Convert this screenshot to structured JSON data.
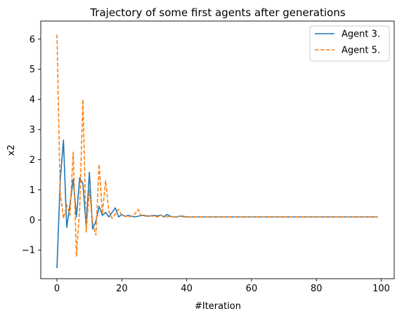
{
  "chart_data": {
    "type": "line",
    "title": "Trajectory of some first agents after generations",
    "xlabel": "#Iteration",
    "ylabel": "x2",
    "xlim": [
      -5,
      104
    ],
    "ylim": [
      -1.95,
      6.6
    ],
    "xticks": [
      0,
      20,
      40,
      60,
      80,
      100
    ],
    "yticks": [
      -1,
      0,
      1,
      2,
      3,
      4,
      5,
      6
    ],
    "xtick_labels": [
      "0",
      "20",
      "40",
      "60",
      "80",
      "100"
    ],
    "ytick_labels": [
      "−1",
      "0",
      "1",
      "2",
      "3",
      "4",
      "5",
      "6"
    ],
    "grid": false,
    "legend_position": "top-right",
    "series": [
      {
        "name": "Agent 3.",
        "color": "#1f77b4",
        "style": "solid",
        "x": [
          0,
          1,
          2,
          3,
          4,
          5,
          6,
          7,
          8,
          9,
          10,
          11,
          12,
          13,
          14,
          15,
          16,
          17,
          18,
          19,
          20,
          21,
          22,
          23,
          24,
          25,
          26,
          27,
          28,
          29,
          30,
          31,
          32,
          33,
          34,
          35,
          36,
          37,
          38,
          39,
          40,
          41,
          42,
          43,
          44,
          45,
          46,
          47,
          48,
          49,
          50,
          51,
          52,
          53,
          54,
          55,
          56,
          57,
          58,
          59,
          60,
          61,
          62,
          63,
          64,
          65,
          66,
          67,
          68,
          69,
          70,
          71,
          72,
          73,
          74,
          75,
          76,
          77,
          78,
          79,
          80,
          81,
          82,
          83,
          84,
          85,
          86,
          87,
          88,
          89,
          90,
          91,
          92,
          93,
          94,
          95,
          96,
          97,
          98,
          99
        ],
        "y": [
          -1.6,
          1.3,
          2.65,
          -0.25,
          0.5,
          1.35,
          0.1,
          1.4,
          1.2,
          -0.2,
          1.58,
          -0.3,
          -0.05,
          0.45,
          0.15,
          0.25,
          0.1,
          0.25,
          0.4,
          0.1,
          0.18,
          0.12,
          0.15,
          0.12,
          0.1,
          0.12,
          0.15,
          0.15,
          0.12,
          0.14,
          0.15,
          0.13,
          0.16,
          0.1,
          0.18,
          0.12,
          0.1,
          0.1,
          0.13,
          0.12,
          0.1,
          0.1,
          0.1,
          0.1,
          0.1,
          0.1,
          0.1,
          0.1,
          0.1,
          0.1,
          0.1,
          0.1,
          0.1,
          0.1,
          0.1,
          0.1,
          0.1,
          0.1,
          0.1,
          0.1,
          0.1,
          0.1,
          0.1,
          0.1,
          0.1,
          0.1,
          0.1,
          0.1,
          0.1,
          0.1,
          0.1,
          0.1,
          0.1,
          0.1,
          0.1,
          0.1,
          0.1,
          0.1,
          0.1,
          0.1,
          0.1,
          0.1,
          0.1,
          0.1,
          0.1,
          0.1,
          0.1,
          0.1,
          0.1,
          0.1,
          0.1,
          0.1,
          0.1,
          0.1,
          0.1,
          0.1,
          0.1,
          0.1,
          0.1,
          0.1
        ]
      },
      {
        "name": "Agent 5.",
        "color": "#ff7f0e",
        "style": "dashed",
        "x": [
          0,
          1,
          2,
          3,
          4,
          5,
          6,
          7,
          8,
          9,
          10,
          11,
          12,
          13,
          14,
          15,
          16,
          17,
          18,
          19,
          20,
          21,
          22,
          23,
          24,
          25,
          26,
          27,
          28,
          29,
          30,
          31,
          32,
          33,
          34,
          35,
          36,
          37,
          38,
          39,
          40,
          41,
          42,
          43,
          44,
          45,
          46,
          47,
          48,
          49,
          50,
          51,
          52,
          53,
          54,
          55,
          56,
          57,
          58,
          59,
          60,
          61,
          62,
          63,
          64,
          65,
          66,
          67,
          68,
          69,
          70,
          71,
          72,
          73,
          74,
          75,
          76,
          77,
          78,
          79,
          80,
          81,
          82,
          83,
          84,
          85,
          86,
          87,
          88,
          89,
          90,
          91,
          92,
          93,
          94,
          95,
          96,
          97,
          98,
          99
        ],
        "y": [
          6.15,
          0.9,
          0.05,
          0.5,
          0.15,
          2.25,
          -1.2,
          0.35,
          4.0,
          -0.4,
          1.0,
          -0.1,
          -0.5,
          1.85,
          0.2,
          1.3,
          0.3,
          0.05,
          0.2,
          0.35,
          0.15,
          0.12,
          0.1,
          0.12,
          0.2,
          0.35,
          0.15,
          0.12,
          0.15,
          0.13,
          0.12,
          0.1,
          0.15,
          0.12,
          0.1,
          0.12,
          0.1,
          0.1,
          0.12,
          0.1,
          0.1,
          0.1,
          0.1,
          0.1,
          0.1,
          0.1,
          0.1,
          0.1,
          0.1,
          0.1,
          0.1,
          0.1,
          0.1,
          0.1,
          0.1,
          0.1,
          0.1,
          0.1,
          0.1,
          0.1,
          0.1,
          0.1,
          0.1,
          0.1,
          0.1,
          0.1,
          0.1,
          0.1,
          0.1,
          0.1,
          0.1,
          0.1,
          0.1,
          0.1,
          0.1,
          0.1,
          0.1,
          0.1,
          0.1,
          0.1,
          0.1,
          0.1,
          0.1,
          0.1,
          0.1,
          0.1,
          0.1,
          0.1,
          0.1,
          0.1,
          0.1,
          0.1,
          0.1,
          0.1,
          0.1,
          0.1,
          0.1,
          0.1,
          0.1,
          0.1
        ]
      }
    ]
  }
}
